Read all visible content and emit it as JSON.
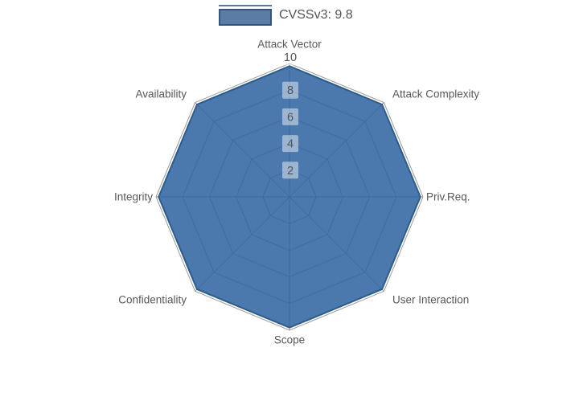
{
  "legend": {
    "label": "CVSSv3: 9.8"
  },
  "colors": {
    "background": "#ffffff",
    "series_fill": "#3065a1",
    "series_fill_opacity": 0.87,
    "series_stroke": "#2b5c8a",
    "grid_line": "#9a9a9a",
    "axis_label_text": "#585858",
    "tick_text": "#555555",
    "tick_box_bg": "rgba(255,255,255,0.45)",
    "legend_swatch_fill": "#5a7da8",
    "legend_swatch_border": "#34567b",
    "legend_line": "#4f7cab",
    "legend_text": "#555555"
  },
  "chart_data": {
    "type": "radar",
    "title": "",
    "categories": [
      "Attack Vector",
      "Attack Complexity",
      "Priv.Req.",
      "User Interaction",
      "Scope",
      "Confidentiality",
      "Integrity",
      "Availability"
    ],
    "series": [
      {
        "name": "CVSSv3: 9.8",
        "values": [
          9.8,
          9.8,
          9.8,
          9.8,
          9.8,
          9.8,
          9.8,
          9.8
        ]
      }
    ],
    "radial_axis": {
      "range": [
        0,
        10
      ],
      "ticks": [
        2,
        4,
        6,
        8,
        10
      ]
    },
    "grid": true,
    "legend_position": "top-center",
    "start_angle": "top",
    "direction": "clockwise"
  }
}
